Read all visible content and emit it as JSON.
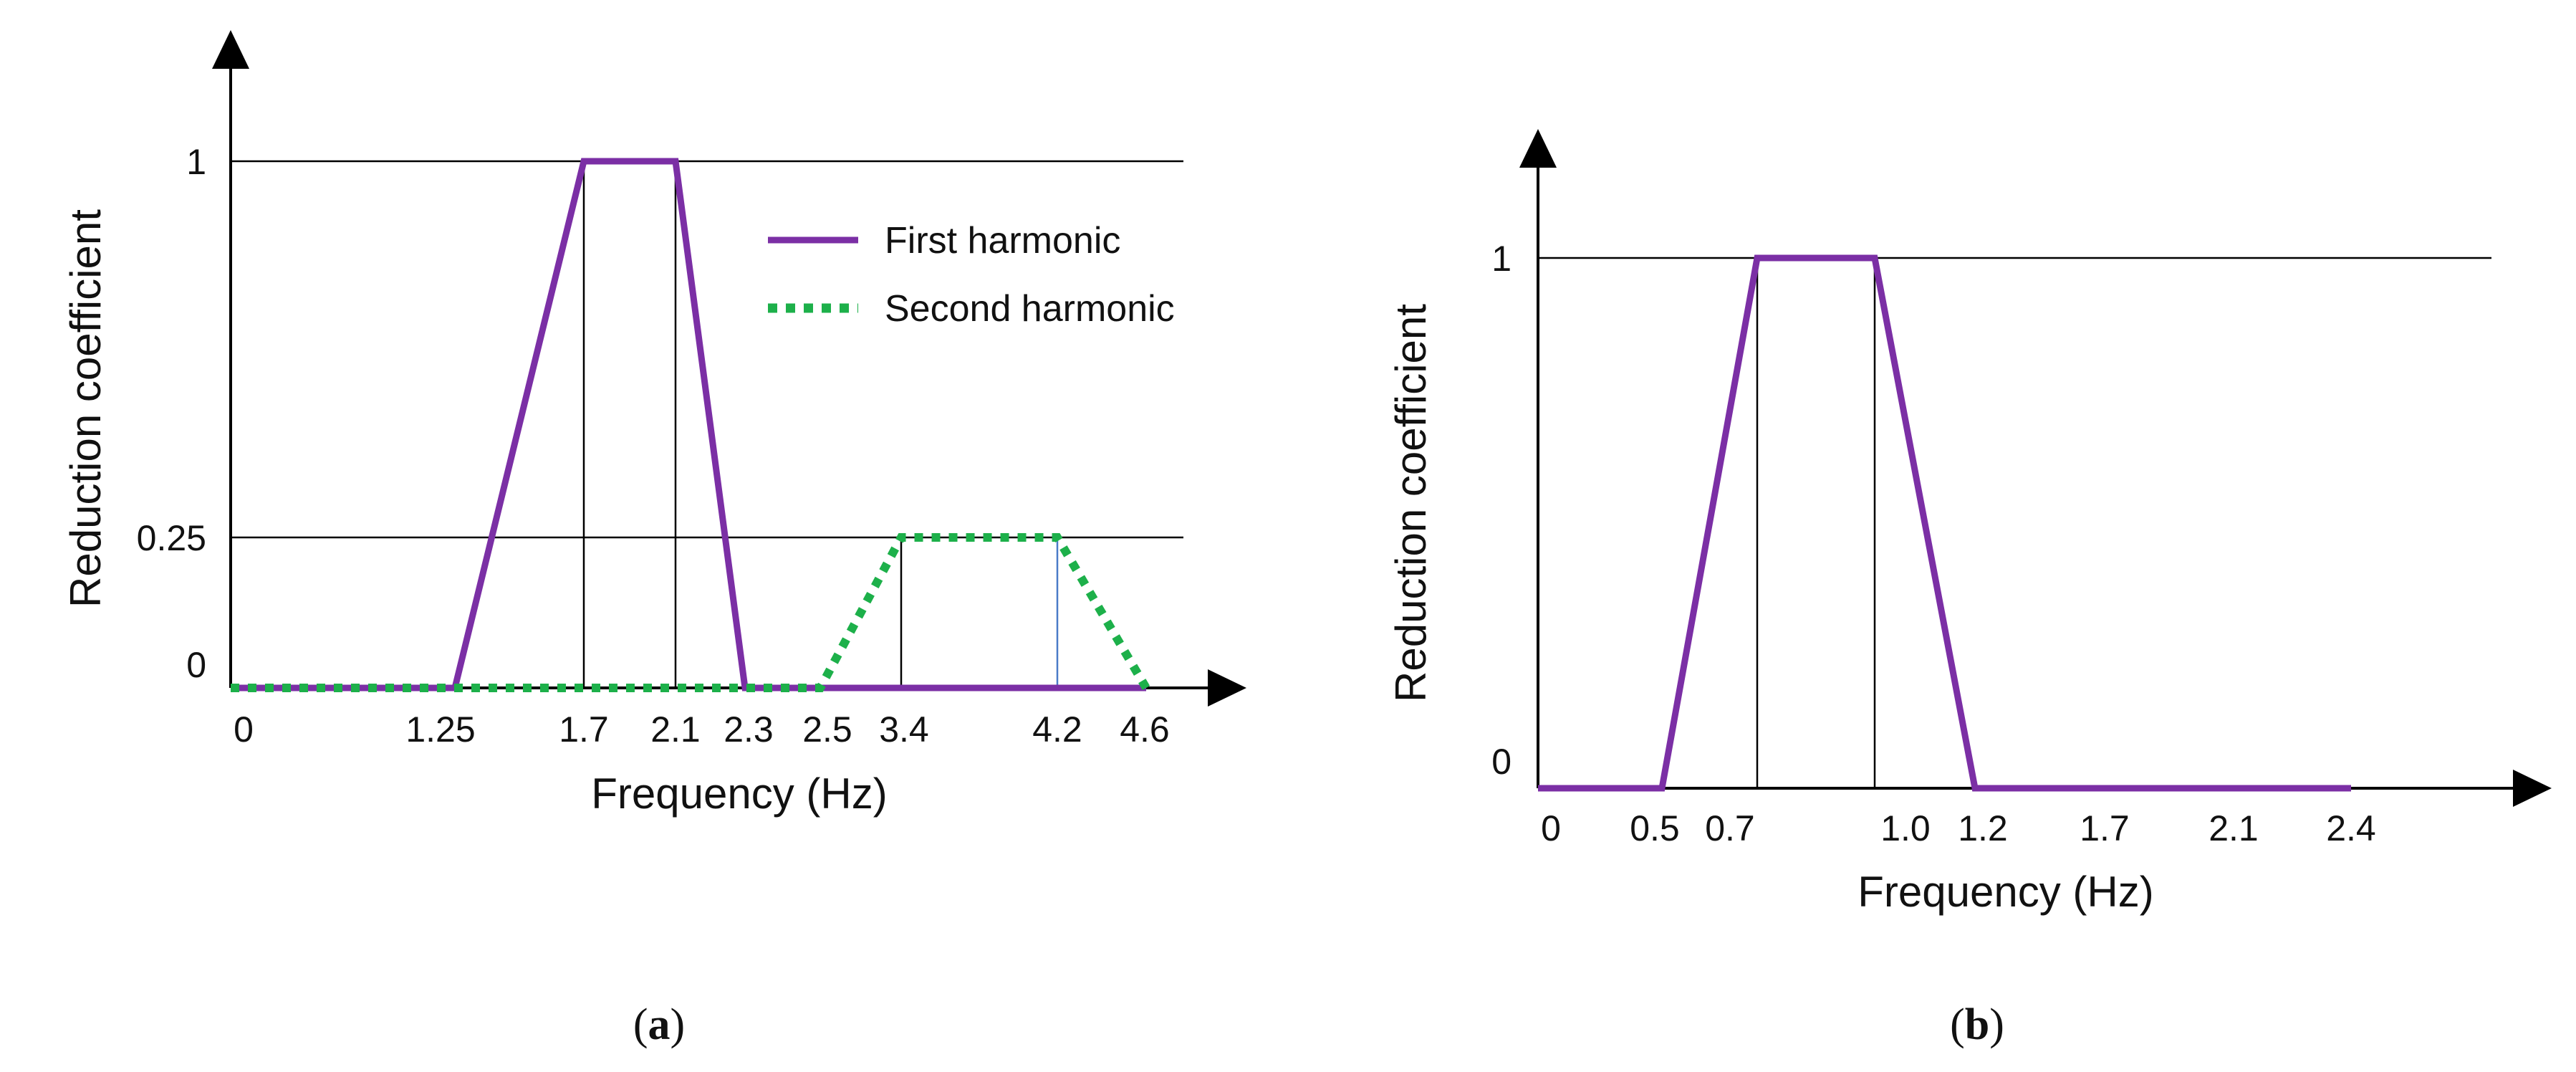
{
  "colors": {
    "first_harmonic": "#7B2FA5",
    "second_harmonic": "#1DB04A",
    "guide_line": "#000000",
    "axis": "#000000"
  },
  "panels": [
    {
      "caption_open": "(",
      "caption_letter": "a",
      "caption_close": ")",
      "ylabel": "Reduction coefficient",
      "xlabel": "Frequency (Hz)",
      "y_ticks": [
        "1",
        "0.25",
        "0"
      ],
      "x_ticks": [
        "0",
        "1.25",
        "1.7",
        "2.1",
        "2.3",
        "2.5",
        "3.4",
        "4.2",
        "4.6"
      ],
      "legend": [
        "First harmonic",
        "Second harmonic"
      ]
    },
    {
      "caption_open": "(",
      "caption_letter": "b",
      "caption_close": ")",
      "ylabel": "Reduction coefficient",
      "xlabel": "Frequency (Hz)",
      "y_ticks": [
        "1",
        "0"
      ],
      "x_ticks": [
        "0",
        "0.5",
        "0.7",
        "1.0",
        "1.2",
        "1.7",
        "2.1",
        "2.4"
      ],
      "legend": []
    }
  ],
  "chart_data": [
    {
      "type": "line",
      "xlabel": "Frequency (Hz)",
      "ylabel": "Reduction coefficient",
      "x_ticks": [
        0,
        1.25,
        1.7,
        2.1,
        2.3,
        2.5,
        3.4,
        4.2,
        4.6
      ],
      "y_ticks": [
        0,
        0.25,
        1
      ],
      "grid": false,
      "legend_position": "top-right",
      "series": [
        {
          "name": "First harmonic",
          "style": "solid",
          "x": [
            0,
            1.25,
            1.7,
            2.1,
            2.3,
            4.6
          ],
          "y": [
            0,
            0,
            1,
            1,
            0,
            0
          ]
        },
        {
          "name": "Second harmonic",
          "style": "dotted",
          "x": [
            0,
            2.5,
            3.4,
            4.2,
            4.6
          ],
          "y": [
            0,
            0,
            0.25,
            0.25,
            0
          ]
        }
      ]
    },
    {
      "type": "line",
      "xlabel": "Frequency (Hz)",
      "ylabel": "Reduction coefficient",
      "x_ticks": [
        0,
        0.5,
        0.7,
        1.0,
        1.2,
        1.7,
        2.1,
        2.4
      ],
      "y_ticks": [
        0,
        1
      ],
      "grid": false,
      "series": [
        {
          "style": "solid",
          "x": [
            0,
            0.5,
            0.7,
            1.0,
            1.2,
            2.4
          ],
          "y": [
            0,
            0,
            1,
            1,
            0,
            0
          ]
        }
      ]
    }
  ]
}
